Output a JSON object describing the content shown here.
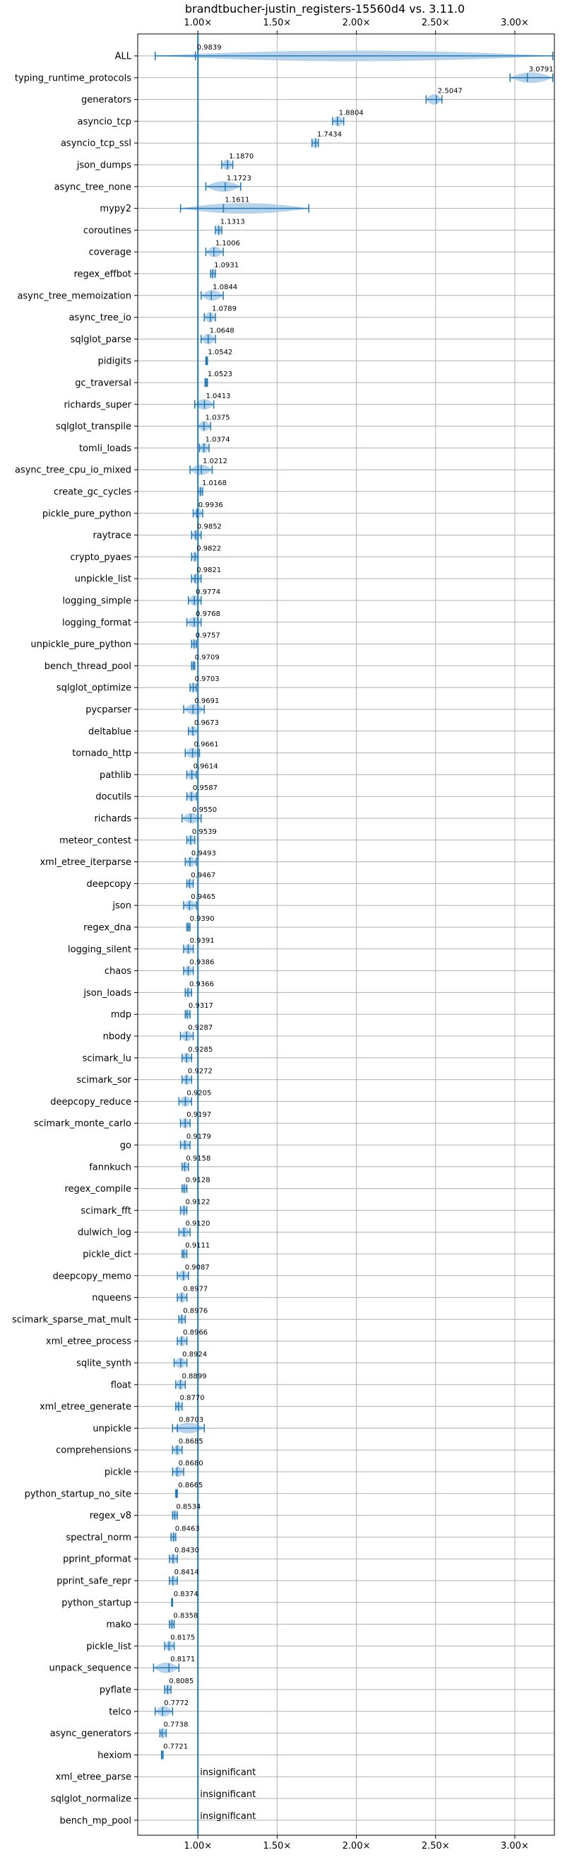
{
  "chart_data": {
    "type": "violin",
    "title": "brandtbucher-justin_registers-15560d4 vs. 3.11.0",
    "xlim": [
      0.62,
      3.25
    ],
    "xticks": [
      1.0,
      1.5,
      2.0,
      2.5,
      3.0
    ],
    "xtick_labels": [
      "1.00×",
      "1.50×",
      "2.00×",
      "2.50×",
      "3.00×"
    ],
    "grid": true,
    "reference_line": 1.0,
    "colors": {
      "violin": "#a9cbe8",
      "line": "#1f77b4"
    },
    "insignificant_label": "insignificant",
    "benchmarks": [
      {
        "name": "ALL",
        "value": 0.9839,
        "label": "0.9839",
        "min": 0.73,
        "max": 3.24
      },
      {
        "name": "typing_runtime_protocols",
        "value": 3.0791,
        "label": "3.0791",
        "min": 2.97,
        "max": 3.24
      },
      {
        "name": "generators",
        "value": 2.5047,
        "label": "2.5047",
        "min": 2.44,
        "max": 2.54
      },
      {
        "name": "asyncio_tcp",
        "value": 1.8804,
        "label": "1.8804",
        "min": 1.85,
        "max": 1.92
      },
      {
        "name": "asyncio_tcp_ssl",
        "value": 1.7434,
        "label": "1.7434",
        "min": 1.72,
        "max": 1.76
      },
      {
        "name": "json_dumps",
        "value": 1.187,
        "label": "1.1870",
        "min": 1.15,
        "max": 1.22
      },
      {
        "name": "async_tree_none",
        "value": 1.1723,
        "label": "1.1723",
        "min": 1.05,
        "max": 1.27
      },
      {
        "name": "mypy2",
        "value": 1.1611,
        "label": "1.1611",
        "min": 0.89,
        "max": 1.7
      },
      {
        "name": "coroutines",
        "value": 1.1313,
        "label": "1.1313",
        "min": 1.11,
        "max": 1.15
      },
      {
        "name": "coverage",
        "value": 1.1006,
        "label": "1.1006",
        "min": 1.05,
        "max": 1.16
      },
      {
        "name": "regex_effbot",
        "value": 1.0931,
        "label": "1.0931",
        "min": 1.08,
        "max": 1.11
      },
      {
        "name": "async_tree_memoization",
        "value": 1.0844,
        "label": "1.0844",
        "min": 1.02,
        "max": 1.16
      },
      {
        "name": "async_tree_io",
        "value": 1.0789,
        "label": "1.0789",
        "min": 1.04,
        "max": 1.11
      },
      {
        "name": "sqlglot_parse",
        "value": 1.0648,
        "label": "1.0648",
        "min": 1.02,
        "max": 1.11
      },
      {
        "name": "pidigits",
        "value": 1.0542,
        "label": "1.0542",
        "min": 1.05,
        "max": 1.06
      },
      {
        "name": "gc_traversal",
        "value": 1.0523,
        "label": "1.0523",
        "min": 1.045,
        "max": 1.06
      },
      {
        "name": "richards_super",
        "value": 1.0413,
        "label": "1.0413",
        "min": 0.98,
        "max": 1.1
      },
      {
        "name": "sqlglot_transpile",
        "value": 1.0375,
        "label": "1.0375",
        "min": 1.0,
        "max": 1.08
      },
      {
        "name": "tomli_loads",
        "value": 1.0374,
        "label": "1.0374",
        "min": 1.01,
        "max": 1.07
      },
      {
        "name": "async_tree_cpu_io_mixed",
        "value": 1.0212,
        "label": "1.0212",
        "min": 0.95,
        "max": 1.09
      },
      {
        "name": "create_gc_cycles",
        "value": 1.0168,
        "label": "1.0168",
        "min": 1.0,
        "max": 1.03
      },
      {
        "name": "pickle_pure_python",
        "value": 0.9936,
        "label": "0.9936",
        "min": 0.97,
        "max": 1.03
      },
      {
        "name": "raytrace",
        "value": 0.9852,
        "label": "0.9852",
        "min": 0.96,
        "max": 1.02
      },
      {
        "name": "crypto_pyaes",
        "value": 0.9822,
        "label": "0.9822",
        "min": 0.96,
        "max": 1.0
      },
      {
        "name": "unpickle_list",
        "value": 0.9821,
        "label": "0.9821",
        "min": 0.96,
        "max": 1.02
      },
      {
        "name": "logging_simple",
        "value": 0.9774,
        "label": "0.9774",
        "min": 0.94,
        "max": 1.02
      },
      {
        "name": "logging_format",
        "value": 0.9768,
        "label": "0.9768",
        "min": 0.93,
        "max": 1.02
      },
      {
        "name": "unpickle_pure_python",
        "value": 0.9757,
        "label": "0.9757",
        "min": 0.96,
        "max": 0.99
      },
      {
        "name": "bench_thread_pool",
        "value": 0.9709,
        "label": "0.9709",
        "min": 0.96,
        "max": 0.98
      },
      {
        "name": "sqlglot_optimize",
        "value": 0.9703,
        "label": "0.9703",
        "min": 0.95,
        "max": 0.99
      },
      {
        "name": "pycparser",
        "value": 0.9691,
        "label": "0.9691",
        "min": 0.91,
        "max": 1.04
      },
      {
        "name": "deltablue",
        "value": 0.9673,
        "label": "0.9673",
        "min": 0.94,
        "max": 1.0
      },
      {
        "name": "tornado_http",
        "value": 0.9661,
        "label": "0.9661",
        "min": 0.92,
        "max": 1.01
      },
      {
        "name": "pathlib",
        "value": 0.9614,
        "label": "0.9614",
        "min": 0.93,
        "max": 0.99
      },
      {
        "name": "docutils",
        "value": 0.9587,
        "label": "0.9587",
        "min": 0.93,
        "max": 0.99
      },
      {
        "name": "richards",
        "value": 0.955,
        "label": "0.9550",
        "min": 0.9,
        "max": 1.02
      },
      {
        "name": "meteor_contest",
        "value": 0.9539,
        "label": "0.9539",
        "min": 0.93,
        "max": 0.98
      },
      {
        "name": "xml_etree_iterparse",
        "value": 0.9493,
        "label": "0.9493",
        "min": 0.92,
        "max": 0.99
      },
      {
        "name": "deepcopy",
        "value": 0.9467,
        "label": "0.9467",
        "min": 0.93,
        "max": 0.97
      },
      {
        "name": "json",
        "value": 0.9465,
        "label": "0.9465",
        "min": 0.91,
        "max": 0.99
      },
      {
        "name": "regex_dna",
        "value": 0.939,
        "label": "0.9390",
        "min": 0.93,
        "max": 0.95
      },
      {
        "name": "logging_silent",
        "value": 0.9391,
        "label": "0.9391",
        "min": 0.91,
        "max": 0.97
      },
      {
        "name": "chaos",
        "value": 0.9386,
        "label": "0.9386",
        "min": 0.91,
        "max": 0.97
      },
      {
        "name": "json_loads",
        "value": 0.9366,
        "label": "0.9366",
        "min": 0.92,
        "max": 0.96
      },
      {
        "name": "mdp",
        "value": 0.9317,
        "label": "0.9317",
        "min": 0.92,
        "max": 0.95
      },
      {
        "name": "nbody",
        "value": 0.9287,
        "label": "0.9287",
        "min": 0.89,
        "max": 0.97
      },
      {
        "name": "scimark_lu",
        "value": 0.9285,
        "label": "0.9285",
        "min": 0.9,
        "max": 0.96
      },
      {
        "name": "scimark_sor",
        "value": 0.9272,
        "label": "0.9272",
        "min": 0.9,
        "max": 0.96
      },
      {
        "name": "deepcopy_reduce",
        "value": 0.9205,
        "label": "0.9205",
        "min": 0.88,
        "max": 0.96
      },
      {
        "name": "scimark_monte_carlo",
        "value": 0.9197,
        "label": "0.9197",
        "min": 0.89,
        "max": 0.95
      },
      {
        "name": "go",
        "value": 0.9179,
        "label": "0.9179",
        "min": 0.89,
        "max": 0.95
      },
      {
        "name": "fannkuch",
        "value": 0.9158,
        "label": "0.9158",
        "min": 0.9,
        "max": 0.94
      },
      {
        "name": "regex_compile",
        "value": 0.9128,
        "label": "0.9128",
        "min": 0.9,
        "max": 0.93
      },
      {
        "name": "scimark_fft",
        "value": 0.9122,
        "label": "0.9122",
        "min": 0.89,
        "max": 0.93
      },
      {
        "name": "dulwich_log",
        "value": 0.912,
        "label": "0.9120",
        "min": 0.88,
        "max": 0.95
      },
      {
        "name": "pickle_dict",
        "value": 0.9111,
        "label": "0.9111",
        "min": 0.9,
        "max": 0.93
      },
      {
        "name": "deepcopy_memo",
        "value": 0.9087,
        "label": "0.9087",
        "min": 0.87,
        "max": 0.94
      },
      {
        "name": "nqueens",
        "value": 0.8977,
        "label": "0.8977",
        "min": 0.87,
        "max": 0.93
      },
      {
        "name": "scimark_sparse_mat_mult",
        "value": 0.8976,
        "label": "0.8976",
        "min": 0.88,
        "max": 0.92
      },
      {
        "name": "xml_etree_process",
        "value": 0.8966,
        "label": "0.8966",
        "min": 0.87,
        "max": 0.93
      },
      {
        "name": "sqlite_synth",
        "value": 0.8924,
        "label": "0.8924",
        "min": 0.85,
        "max": 0.93
      },
      {
        "name": "float",
        "value": 0.8899,
        "label": "0.8899",
        "min": 0.86,
        "max": 0.92
      },
      {
        "name": "xml_etree_generate",
        "value": 0.877,
        "label": "0.8770",
        "min": 0.86,
        "max": 0.9
      },
      {
        "name": "unpickle",
        "value": 0.8703,
        "label": "0.8703",
        "min": 0.84,
        "max": 1.04
      },
      {
        "name": "comprehensions",
        "value": 0.8685,
        "label": "0.8685",
        "min": 0.84,
        "max": 0.9
      },
      {
        "name": "pickle",
        "value": 0.868,
        "label": "0.8680",
        "min": 0.84,
        "max": 0.91
      },
      {
        "name": "python_startup_no_site",
        "value": 0.8665,
        "label": "0.8665",
        "min": 0.86,
        "max": 0.87
      },
      {
        "name": "regex_v8",
        "value": 0.8534,
        "label": "0.8534",
        "min": 0.84,
        "max": 0.87
      },
      {
        "name": "spectral_norm",
        "value": 0.8463,
        "label": "0.8463",
        "min": 0.83,
        "max": 0.86
      },
      {
        "name": "pprint_pformat",
        "value": 0.843,
        "label": "0.8430",
        "min": 0.82,
        "max": 0.87
      },
      {
        "name": "pprint_safe_repr",
        "value": 0.8414,
        "label": "0.8414",
        "min": 0.82,
        "max": 0.87
      },
      {
        "name": "python_startup",
        "value": 0.8374,
        "label": "0.8374",
        "min": 0.834,
        "max": 0.84
      },
      {
        "name": "mako",
        "value": 0.8358,
        "label": "0.8358",
        "min": 0.82,
        "max": 0.85
      },
      {
        "name": "pickle_list",
        "value": 0.8175,
        "label": "0.8175",
        "min": 0.79,
        "max": 0.85
      },
      {
        "name": "unpack_sequence",
        "value": 0.8171,
        "label": "0.8171",
        "min": 0.72,
        "max": 0.88
      },
      {
        "name": "pyflate",
        "value": 0.8085,
        "label": "0.8085",
        "min": 0.79,
        "max": 0.83
      },
      {
        "name": "telco",
        "value": 0.7772,
        "label": "0.7772",
        "min": 0.73,
        "max": 0.84
      },
      {
        "name": "async_generators",
        "value": 0.7738,
        "label": "0.7738",
        "min": 0.76,
        "max": 0.8
      },
      {
        "name": "hexiom",
        "value": 0.7721,
        "label": "0.7721",
        "min": 0.77,
        "max": 0.78
      },
      {
        "name": "xml_etree_parse",
        "value": null,
        "label": "",
        "min": null,
        "max": null
      },
      {
        "name": "sqlglot_normalize",
        "value": null,
        "label": "",
        "min": null,
        "max": null
      },
      {
        "name": "bench_mp_pool",
        "value": null,
        "label": "",
        "min": null,
        "max": null
      }
    ]
  }
}
